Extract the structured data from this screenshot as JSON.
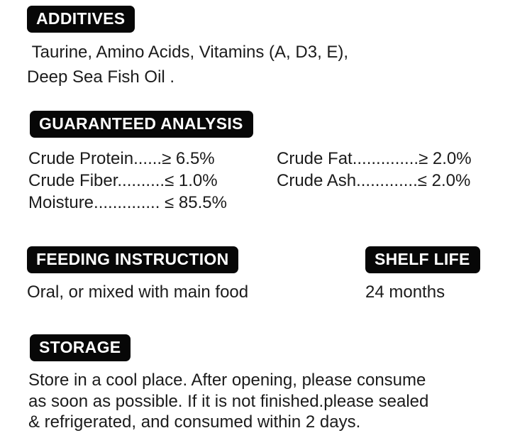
{
  "sections": {
    "additives": {
      "title": "ADDITIVES",
      "lines": [
        " Taurine, Amino Acids, Vitamins (A, D3, E),",
        "Deep Sea Fish Oil ."
      ]
    },
    "guaranteed_analysis": {
      "title": "GUARANTEED ANALYSIS",
      "left_column": [
        "Crude Protein......≥ 6.5%",
        "Crude Fiber..........≤ 1.0%",
        "Moisture.............. ≤ 85.5%"
      ],
      "right_column": [
        "Crude Fat..............≥ 2.0%",
        "Crude Ash.............≤ 2.0%",
        ""
      ]
    },
    "feeding_instruction": {
      "title": "FEEDING INSTRUCTION",
      "text": "Oral, or mixed with main food"
    },
    "shelf_life": {
      "title": "SHELF LIFE",
      "text": "24 months"
    },
    "storage": {
      "title": "STORAGE",
      "lines": [
        "Store in a cool place. After opening, please consume",
        "as soon as possible. If it is not finished.please sealed",
        "& refrigerated, and consumed within 2 days."
      ]
    }
  },
  "colors": {
    "header_background": "#070707",
    "header_text": "#ffffff",
    "body_text": "#1b1b1b",
    "page_background": "#ffffff"
  }
}
